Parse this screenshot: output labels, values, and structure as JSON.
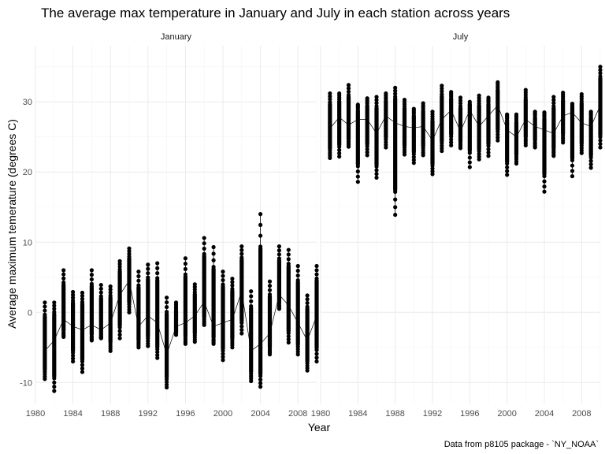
{
  "chart_data": {
    "type": "scatter",
    "title": "The average max temperature in January and July in each station across years",
    "xlabel": "Year",
    "ylabel": "Average maximum temerature (degrees C)",
    "caption": "Data from p8105 package - `NY_NOAA`",
    "xlim": [
      1980,
      2010
    ],
    "ylim": [
      -13,
      38
    ],
    "x_ticks": [
      1980,
      1984,
      1988,
      1992,
      1996,
      2000,
      2004,
      2008
    ],
    "x_tick_labels": [
      "1980",
      "1984",
      "1988",
      "1992",
      "1996",
      "2000",
      "2004",
      "2008"
    ],
    "y_ticks": [
      -10,
      0,
      10,
      20,
      30
    ],
    "y_tick_labels": [
      "-10",
      "0",
      "10",
      "20",
      "30"
    ],
    "grid": true,
    "facets": [
      {
        "name": "January",
        "years": [
          1981,
          1982,
          1983,
          1984,
          1985,
          1986,
          1987,
          1988,
          1989,
          1990,
          1991,
          1992,
          1993,
          1994,
          1995,
          1996,
          1997,
          1998,
          1999,
          2000,
          2001,
          2002,
          2003,
          2004,
          2005,
          2006,
          2007,
          2008,
          2009,
          2010
        ],
        "mean": [
          -5.5,
          -4,
          -1,
          -2,
          -2.5,
          -1.8,
          -2.5,
          -1.5,
          2.5,
          4.5,
          -2,
          -0.5,
          -1.5,
          -6,
          -2,
          -1.5,
          -0.5,
          1.5,
          -2,
          -1.5,
          -1,
          3,
          -5.5,
          -4.5,
          -3,
          2.5,
          1,
          -1.5,
          -4,
          -0.5
        ],
        "min": [
          -9.5,
          -11.2,
          -3.5,
          -7,
          -8.5,
          -4,
          -3.5,
          -5.5,
          -3.7,
          0,
          -5,
          -4.8,
          -6.5,
          -10.7,
          -2,
          -4.5,
          -4.2,
          -1.8,
          -4.5,
          -6.8,
          -5,
          -3,
          -9.8,
          -10.6,
          -6,
          0.5,
          -4.3,
          -6,
          -8.3,
          -7
        ],
        "max": [
          1.4,
          1.4,
          6,
          2.9,
          2.8,
          6,
          3.9,
          3.7,
          7.3,
          9.1,
          5.8,
          6.8,
          7,
          2.1,
          1.4,
          7.7,
          4,
          10.6,
          9.3,
          5.8,
          4.8,
          9.4,
          3,
          14,
          4.4,
          9.4,
          8.9,
          6.6,
          2.4,
          6.6
        ]
      },
      {
        "name": "July",
        "years": [
          1981,
          1982,
          1983,
          1984,
          1985,
          1986,
          1987,
          1988,
          1989,
          1990,
          1991,
          1992,
          1993,
          1994,
          1995,
          1996,
          1997,
          1998,
          1999,
          2000,
          2001,
          2002,
          2003,
          2004,
          2005,
          2006,
          2007,
          2008,
          2009,
          2010
        ],
        "mean": [
          26.2,
          27.8,
          26.7,
          27.5,
          27.5,
          25.5,
          28,
          27,
          26.5,
          26.3,
          26.5,
          24.5,
          27.5,
          28.8,
          25.8,
          28.8,
          26.5,
          28,
          29.5,
          26,
          25,
          27.5,
          26.5,
          26,
          25.5,
          28,
          28.5,
          27,
          26.5,
          29.5
        ],
        "min": [
          22,
          22.2,
          23.6,
          18.6,
          22.4,
          19.2,
          23.5,
          13.9,
          22.5,
          21.3,
          22.4,
          19.7,
          23,
          23.8,
          23.4,
          20.7,
          21.8,
          22.3,
          24.5,
          19.6,
          21.2,
          23.8,
          23.5,
          17.2,
          22.3,
          24.2,
          19.4,
          22.7,
          20.6,
          23.5
        ],
        "max": [
          31.2,
          31.2,
          32.4,
          29.6,
          30.5,
          30.7,
          31.2,
          32,
          30.3,
          29,
          29.8,
          28.6,
          32.3,
          31.4,
          30.6,
          28.5,
          30.9,
          30.6,
          32.8,
          28.2,
          28.2,
          31.7,
          28.6,
          28.5,
          30.7,
          31.3,
          29.7,
          31.1,
          28.6,
          35
        ]
      }
    ]
  }
}
